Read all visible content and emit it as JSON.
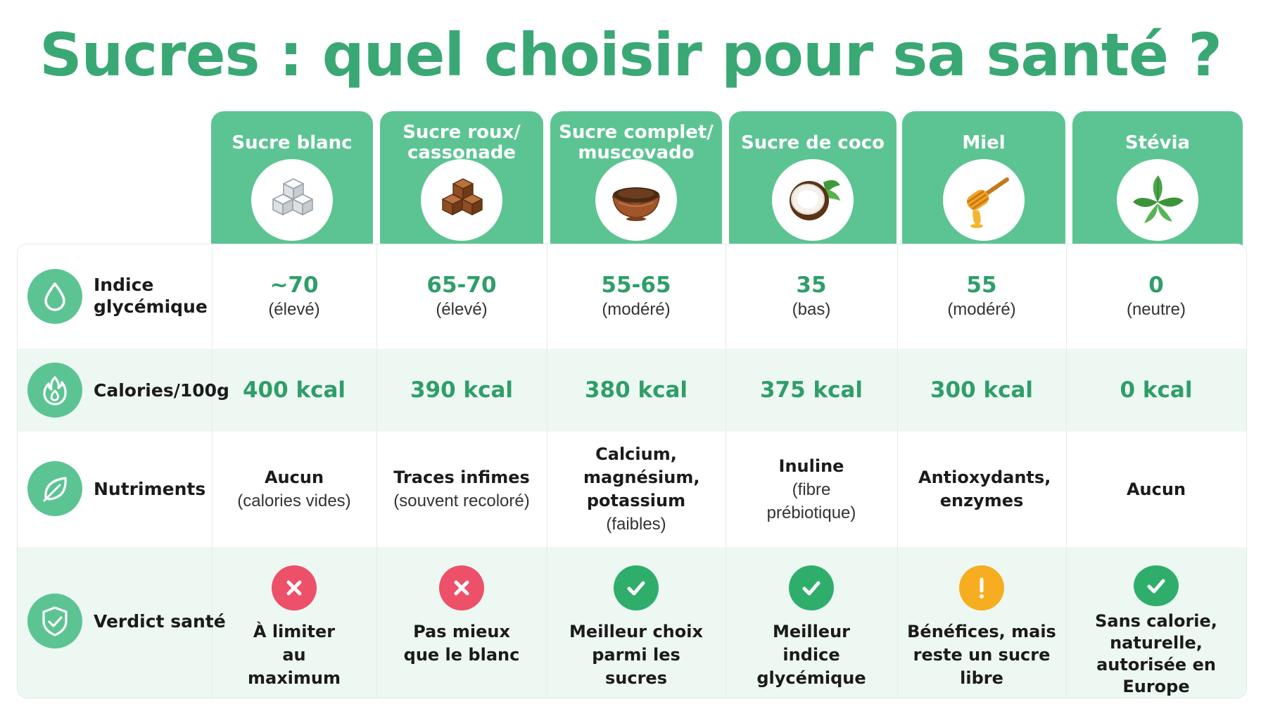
{
  "title": "Sucres : quel choisir pour sa santé ?",
  "colors": {
    "green": "#5cc493",
    "green_text": "#2f9e69",
    "bad": "#ec5169",
    "warn": "#f6ad20",
    "good": "#2fae6b"
  },
  "columns": [
    {
      "name": "Sucre blanc",
      "icon": "sugar-cubes-icon"
    },
    {
      "name": "Sucre roux/ cassonade",
      "icon": "brown-sugar-cubes-icon"
    },
    {
      "name": "Sucre complet/ muscovado",
      "icon": "muscovado-bowl-icon"
    },
    {
      "name": "Sucre de coco",
      "icon": "coconut-icon"
    },
    {
      "name": "Miel",
      "icon": "honey-dipper-icon"
    },
    {
      "name": "Stévia",
      "icon": "stevia-leaf-icon"
    }
  ],
  "rows": {
    "glycemic": {
      "label": "Indice glycémique",
      "icon": "drop-icon",
      "values": [
        {
          "value": "~70",
          "note": "(élevé)"
        },
        {
          "value": "65-70",
          "note": "(élevé)"
        },
        {
          "value": "55-65",
          "note": "(modéré)"
        },
        {
          "value": "35",
          "note": "(bas)"
        },
        {
          "value": "55",
          "note": "(modéré)"
        },
        {
          "value": "0",
          "note": "(neutre)"
        }
      ]
    },
    "calories": {
      "label": "Calories/100g",
      "icon": "flame-icon",
      "values": [
        "400 kcal",
        "390 kcal",
        "380 kcal",
        "375 kcal",
        "300 kcal",
        "0 kcal"
      ]
    },
    "nutrients": {
      "label": "Nutriments",
      "icon": "leaf-icon",
      "values": [
        {
          "main": "Aucun",
          "note": "(calories vides)"
        },
        {
          "main": "Traces infimes",
          "note": "(souvent recoloré)"
        },
        {
          "main": "Calcium, magnésium, potassium",
          "note": "(faibles)"
        },
        {
          "main": "Inuline",
          "note": "(fibre prébiotique)"
        },
        {
          "main": "Antioxydants, enzymes",
          "note": ""
        },
        {
          "main": "Aucun",
          "note": ""
        }
      ]
    },
    "verdict": {
      "label": "Verdict santé",
      "icon": "shield-check-icon",
      "values": [
        {
          "status": "bad",
          "icon": "cross-icon",
          "text": "À limiter au maximum"
        },
        {
          "status": "bad",
          "icon": "cross-icon",
          "text": "Pas mieux que le blanc"
        },
        {
          "status": "good",
          "icon": "check-icon",
          "text": "Meilleur choix parmi les sucres"
        },
        {
          "status": "good",
          "icon": "check-icon",
          "text": "Meilleur indice glycémique"
        },
        {
          "status": "warn",
          "icon": "exclamation-icon",
          "text": "Bénéfices, mais reste un sucre libre"
        },
        {
          "status": "good",
          "icon": "check-icon",
          "text": "Sans calorie, naturelle, autorisée en Europe"
        }
      ]
    }
  }
}
